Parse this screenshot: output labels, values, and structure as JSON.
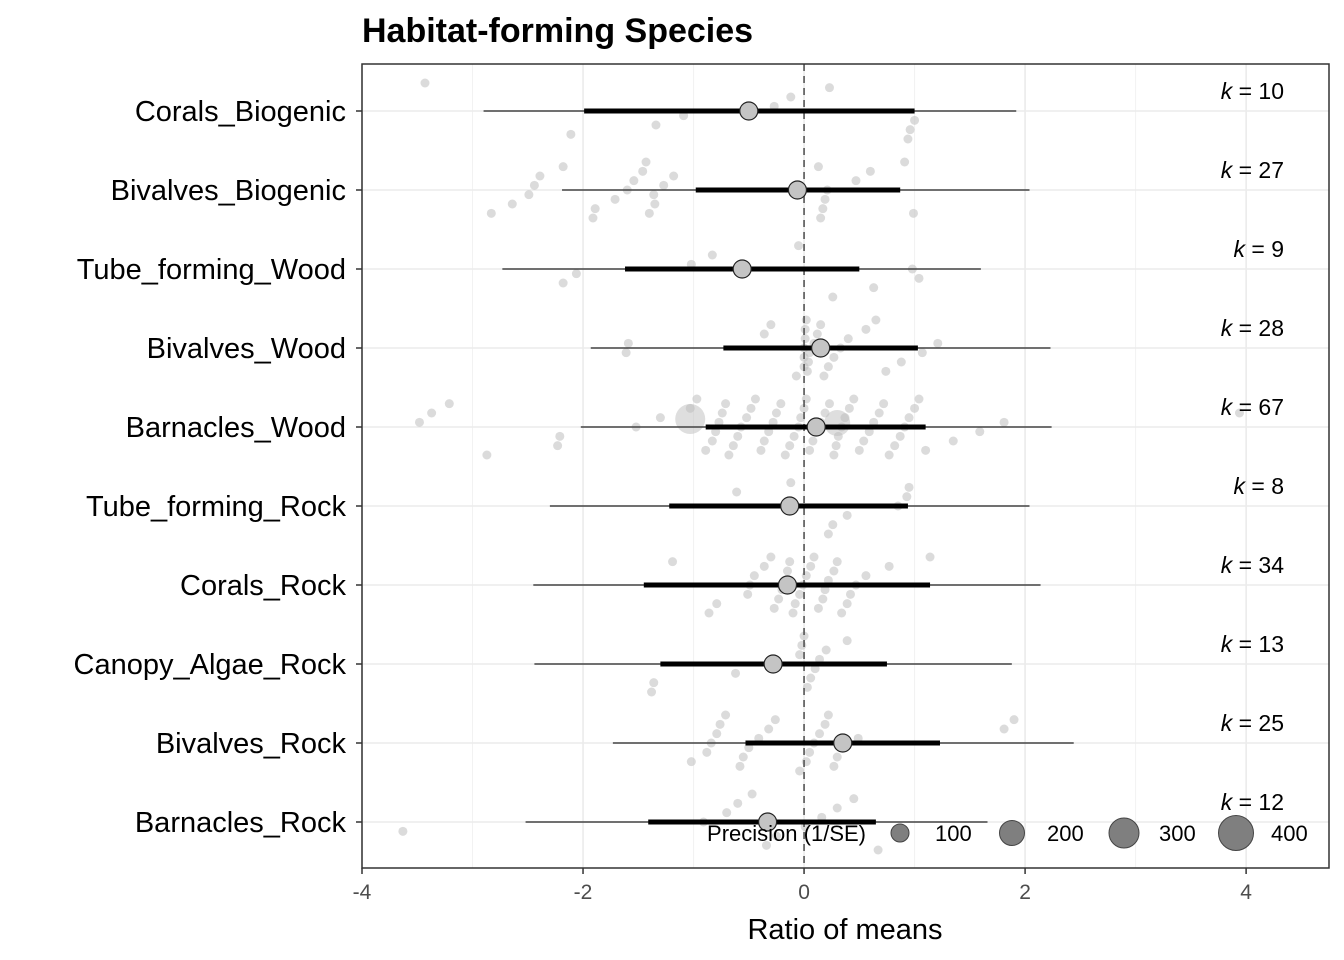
{
  "chart_data": {
    "type": "scatter",
    "subtype": "orchard-plot",
    "title": "Habitat-forming Species",
    "xlabel": "Ratio of means",
    "ylabel": "",
    "xlim": [
      -4.0,
      4.75
    ],
    "xticks": [
      -4,
      -2,
      0,
      2,
      4
    ],
    "xtick_labels": [
      "-4",
      "-2",
      "0",
      "2",
      "4"
    ],
    "reference_line": 0,
    "grid": true,
    "categories": [
      "Corals_Biogenic",
      "Bivalves_Biogenic",
      "Tube_forming_Wood",
      "Bivalves_Wood",
      "Barnacles_Wood",
      "Tube_forming_Rock",
      "Corals_Rock",
      "Canopy_Algae_Rock",
      "Bivalves_Rock",
      "Barnacles_Rock"
    ],
    "k_prefix": "k",
    "k_values": [
      "10",
      "27",
      "9",
      "28",
      "67",
      "8",
      "34",
      "13",
      "25",
      "12"
    ],
    "estimates": [
      -0.5,
      -0.06,
      -0.56,
      0.15,
      0.11,
      -0.13,
      -0.15,
      -0.28,
      0.35,
      -0.33
    ],
    "ci_low": [
      -1.99,
      -0.98,
      -1.62,
      -0.73,
      -0.89,
      -1.22,
      -1.45,
      -1.3,
      -0.53,
      -1.41
    ],
    "ci_high": [
      1.0,
      0.87,
      0.5,
      1.03,
      1.1,
      0.94,
      1.14,
      0.75,
      1.23,
      0.65
    ],
    "pi_low": [
      -2.9,
      -2.19,
      -2.73,
      -1.93,
      -2.02,
      -2.3,
      -2.45,
      -2.44,
      -1.73,
      -2.52
    ],
    "pi_high": [
      1.92,
      2.04,
      1.6,
      2.23,
      2.24,
      2.04,
      2.14,
      1.88,
      2.44,
      1.66
    ],
    "effect_sizes": [
      [
        -3.43,
        -2.11,
        -1.34,
        -1.09,
        -0.27,
        -0.12,
        0.23,
        0.94,
        0.96,
        1.0
      ],
      [
        -2.83,
        -2.64,
        -2.49,
        -2.44,
        -2.39,
        -2.18,
        -1.91,
        -1.89,
        -1.71,
        -1.6,
        -1.54,
        -1.46,
        -1.43,
        -1.4,
        -1.35,
        -1.36,
        -1.27,
        -1.18,
        0.13,
        0.15,
        0.17,
        0.19,
        0.21,
        0.47,
        0.6,
        0.91,
        0.99
      ],
      [
        -2.18,
        -2.06,
        -1.02,
        -0.83,
        -0.05,
        0.26,
        0.63,
        1.04,
        0.98
      ],
      [
        -1.61,
        -1.59,
        -0.36,
        -0.3,
        -0.07,
        0.0,
        0.0,
        0.0,
        0.01,
        0.01,
        0.02,
        0.03,
        0.04,
        0.05,
        0.09,
        0.12,
        0.15,
        0.18,
        0.22,
        0.27,
        0.33,
        0.4,
        0.56,
        0.65,
        0.74,
        0.88,
        1.07,
        1.21
      ],
      [
        -3.48,
        -3.37,
        -3.21,
        -2.87,
        -2.23,
        -2.21,
        -1.52,
        -1.3,
        -1.03,
        -0.97,
        -0.89,
        -0.83,
        -0.8,
        -0.77,
        -0.74,
        -0.71,
        -0.68,
        -0.64,
        -0.6,
        -0.57,
        -0.52,
        -0.48,
        -0.44,
        -0.39,
        -0.36,
        -0.32,
        -0.28,
        -0.25,
        -0.21,
        -0.17,
        -0.13,
        -0.09,
        -0.05,
        -0.03,
        0.0,
        0.02,
        0.05,
        0.08,
        0.12,
        0.15,
        0.19,
        0.23,
        0.27,
        0.29,
        0.31,
        0.34,
        0.37,
        0.41,
        0.45,
        0.5,
        0.54,
        0.59,
        0.63,
        0.68,
        0.72,
        0.77,
        0.82,
        0.87,
        0.91,
        0.95,
        1.0,
        1.04,
        1.1,
        1.35,
        1.59,
        1.81,
        3.94
      ],
      [
        -0.61,
        -0.12,
        0.22,
        0.26,
        0.39,
        0.85,
        0.93,
        0.95
      ],
      [
        -1.19,
        -0.86,
        -0.79,
        -0.51,
        -0.49,
        -0.45,
        -0.36,
        -0.3,
        -0.27,
        -0.23,
        -0.2,
        -0.17,
        -0.15,
        -0.13,
        -0.1,
        -0.08,
        -0.04,
        -0.01,
        0.02,
        0.06,
        0.09,
        0.13,
        0.17,
        0.19,
        0.22,
        0.27,
        0.3,
        0.34,
        0.39,
        0.42,
        0.47,
        0.56,
        0.77,
        1.14
      ],
      [
        -1.38,
        -1.36,
        -0.62,
        -0.3,
        -0.04,
        -0.02,
        0.0,
        0.03,
        0.06,
        0.1,
        0.14,
        0.2,
        0.39
      ],
      [
        -1.02,
        -0.88,
        -0.84,
        -0.79,
        -0.76,
        -0.71,
        -0.58,
        -0.55,
        -0.5,
        -0.41,
        -0.32,
        -0.26,
        -0.04,
        0.02,
        0.05,
        0.09,
        0.14,
        0.19,
        0.22,
        0.27,
        0.3,
        0.34,
        0.49,
        1.81,
        1.9
      ],
      [
        -3.63,
        -0.91,
        -0.7,
        -0.6,
        -0.47,
        -0.34,
        -0.25,
        0.01,
        0.16,
        0.3,
        0.45,
        0.67
      ]
    ],
    "legend": {
      "title": "Precision (1/SE)",
      "position": "bottom-right",
      "entries": [
        "100",
        "200",
        "300",
        "400"
      ]
    }
  }
}
